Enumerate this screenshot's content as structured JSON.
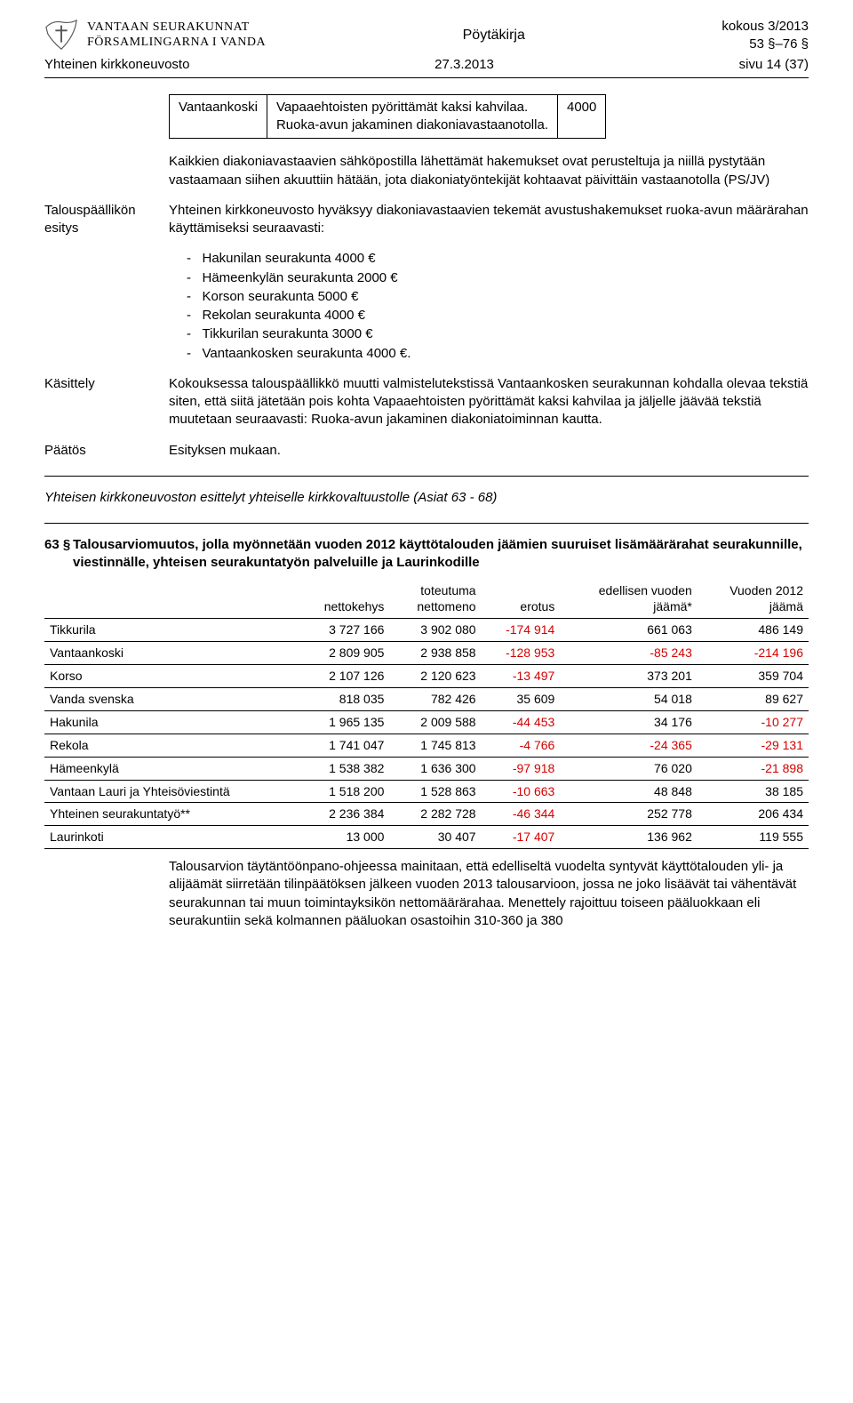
{
  "header": {
    "brand_line1": "VANTAAN SEURAKUNNAT",
    "brand_line2": "FÖRSAMLINGARNA I VANDA",
    "doc_type": "Pöytäkirja",
    "meeting": "kokous 3/2013",
    "sections": "53 §–76 §"
  },
  "subheader": {
    "board": "Yhteinen kirkkoneuvosto",
    "date": "27.3.2013",
    "page": "sivu 14 (37)"
  },
  "small_table": {
    "region": "Vantaankoski",
    "text_line1": "Vapaaehtoisten pyörittämät kaksi kahvilaa.",
    "text_line2": "Ruoka-avun jakaminen diakoniavastaanotolla.",
    "amount": "4000"
  },
  "intro_para": "Kaikkien diakoniavastaavien sähköpostilla lähettämät hakemukset ovat perusteltuja ja niillä pystytään vastaamaan siihen akuuttiin hätään, jota diakoniatyöntekijät kohtaavat päivittäin vastaanotolla (PS/JV)",
  "esitys": {
    "label": "Talouspäällikön esitys",
    "text": "Yhteinen kirkkoneuvosto hyväksyy diakoniavastaavien tekemät avustushakemukset ruoka-avun määrärahan käyttämiseksi seuraavasti:"
  },
  "bullets": [
    "Hakunilan seurakunta 4000 €",
    "Hämeenkylän seurakunta 2000 €",
    "Korson seurakunta 5000 €",
    "Rekolan seurakunta 4000 €",
    "Tikkurilan seurakunta 3000 €",
    "Vantaankosken seurakunta 4000 €."
  ],
  "kasittely": {
    "label": "Käsittely",
    "text": "Kokouksessa talouspäällikkö muutti valmistelutekstissä Vantaankosken seurakunnan kohdalla olevaa tekstiä siten, että siitä jätetään pois kohta Vapaaehtoisten pyörittämät kaksi kahvilaa ja jäljelle jäävää tekstiä muutetaan seuraavasti: Ruoka-avun jakaminen diakoniatoiminnan kautta."
  },
  "paatos": {
    "label": "Päätös",
    "text": "Esityksen mukaan."
  },
  "agenda_line": "Yhteisen kirkkoneuvoston esittelyt yhteiselle kirkkovaltuustolle (Asiat 63 - 68)",
  "section63": {
    "num": "63 §",
    "title": "Talousarviomuutos, jolla myönnetään vuoden 2012 käyttötalouden jäämien suuruiset lisämäärärahat seurakunnille, viestinnälle, yhteisen seurakuntatyön palveluille ja Laurinkodille"
  },
  "budget_table": {
    "columns": [
      "",
      "nettokehys",
      "toteutuma nettomeno",
      "erotus",
      "edellisen vuoden jäämä*",
      "Vuoden 2012 jäämä"
    ],
    "col_header_top": [
      "",
      "",
      "toteutuma",
      "",
      "edellisen vuoden",
      "Vuoden 2012"
    ],
    "col_header_bot": [
      "",
      "nettokehys",
      "nettomeno",
      "erotus",
      "jäämä*",
      "jäämä"
    ],
    "rows": [
      [
        "Tikkurila",
        "3 727 166",
        "3 902 080",
        "-174 914",
        "661 063",
        "486 149"
      ],
      [
        "Vantaankoski",
        "2 809 905",
        "2 938 858",
        "-128 953",
        "-85 243",
        "-214 196"
      ],
      [
        "Korso",
        "2 107 126",
        "2 120 623",
        "-13 497",
        "373 201",
        "359 704"
      ],
      [
        "Vanda svenska",
        "818 035",
        "782 426",
        "35 609",
        "54 018",
        "89 627"
      ],
      [
        "Hakunila",
        "1 965 135",
        "2 009 588",
        "-44 453",
        "34 176",
        "-10 277"
      ],
      [
        "Rekola",
        "1 741 047",
        "1 745 813",
        "-4 766",
        "-24 365",
        "-29 131"
      ],
      [
        "Hämeenkylä",
        "1 538 382",
        "1 636 300",
        "-97 918",
        "76 020",
        "-21 898"
      ],
      [
        "Vantaan Lauri ja Yhteisöviestintä",
        "1 518 200",
        "1 528 863",
        "-10 663",
        "48 848",
        "38 185"
      ],
      [
        "Yhteinen seurakuntatyö**",
        "2 236 384",
        "2 282 728",
        "-46 344",
        "252 778",
        "206 434"
      ],
      [
        "Laurinkoti",
        "13 000",
        "30 407",
        "-17 407",
        "136 962",
        "119 555"
      ]
    ],
    "neg_color": "#d40000",
    "text_color": "#000000",
    "border_color": "#000000"
  },
  "footer_para": "Talousarvion täytäntöönpano-ohjeessa mainitaan, että edelliseltä vuodelta syntyvät käyttötalouden yli- ja alijäämät siirretään tilinpäätöksen jälkeen vuoden 2013 talousarvioon, jossa ne joko lisäävät tai vähentävät seurakunnan tai muun toimintayksikön nettomäärärahaa. Menettely rajoittuu toiseen pääluokkaan eli seurakuntiin sekä kolmannen pääluokan osastoihin 310-360 ja 380"
}
